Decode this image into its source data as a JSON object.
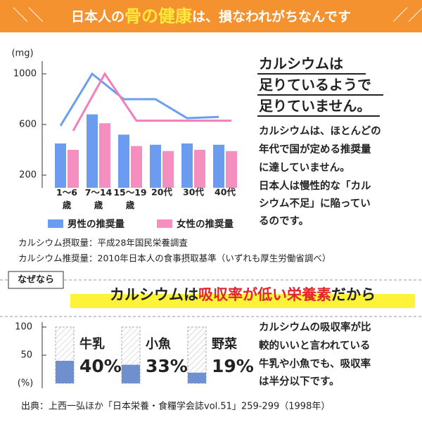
{
  "header": {
    "title": [
      "日本人の",
      "骨の健康",
      "は、損なわれがちなんです"
    ]
  },
  "summary": {
    "heading": [
      "カルシウムは",
      "足りているようで",
      "足りていません。"
    ],
    "body": [
      "カルシウムは、ほとんどの",
      "年代で国が定める推奨量",
      "に達していません。",
      "日本人は慢性的な「カル",
      "シウム不足」に陥ってい",
      "るのです。"
    ]
  },
  "notes": [
    "カルシウム摂取量：平成28年国民栄養調査",
    "カルシウム推奨量：2010年日本人の食事摂取基準（いずれも厚生労働省調べ）"
  ],
  "reason": {
    "tag": "なぜなら",
    "banner": [
      "カルシウムは",
      "吸収率が低い栄養素",
      "だから"
    ],
    "body": [
      "カルシウムの吸収率が比",
      "較的いいと言われている",
      "牛乳や小魚でも、吸収率",
      "は半分以下です。"
    ]
  },
  "source": "出典：上西一弘ほか「日本栄養・食糧学会誌vol.51」259-299（1998年）",
  "chart_data": [
    {
      "type": "bar",
      "ylabel": "(mg)",
      "categories": [
        "1～6歳",
        "7～14歳",
        "15～19歳",
        "20代",
        "30代",
        "40代"
      ],
      "series": [
        {
          "name": "男性の推奨量",
          "color": "#6b9cf0",
          "values": [
            450,
            680,
            520,
            440,
            450,
            440
          ]
        },
        {
          "name": "女性の推奨量",
          "color": "#f48fc0",
          "values": [
            400,
            610,
            430,
            390,
            400,
            390
          ]
        }
      ],
      "lines": [
        {
          "color": "#6a9ff0",
          "values": [
            590,
            1000,
            800,
            800,
            650,
            660
          ]
        },
        {
          "color": "#f27fba",
          "values": [
            550,
            1000,
            630,
            630,
            630,
            630
          ]
        }
      ],
      "ylim": [
        100,
        1100
      ],
      "yticks": [
        200,
        600,
        1000
      ]
    },
    {
      "type": "bar",
      "ylabel": "(%)",
      "categories": [
        "牛乳",
        "小魚",
        "野菜"
      ],
      "values": [
        40,
        33,
        19
      ],
      "value_labels": [
        "40%",
        "33%",
        "19%"
      ],
      "color": "#6f8fce",
      "ylim": [
        0,
        100
      ],
      "yticks": [
        50,
        100
      ]
    }
  ]
}
